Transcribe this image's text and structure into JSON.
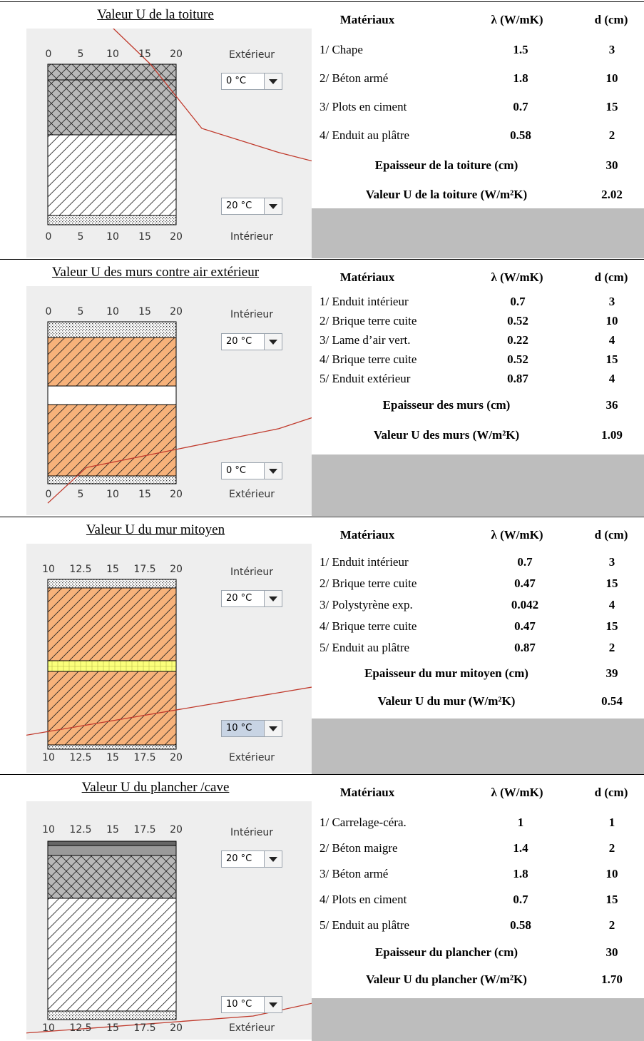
{
  "headers": {
    "materials": "Matériaux",
    "lambda": "λ (W/mK)",
    "d": "d (cm)"
  },
  "sections": [
    {
      "title": "Valeur U de la toiture",
      "top_label": "Extérieur",
      "bottom_label": "Intérieur",
      "top_temp": "0 °C",
      "bottom_temp": "20 °C",
      "ticks_top": [
        "0",
        "5",
        "10",
        "15",
        "20"
      ],
      "ticks_bottom": [
        "0",
        "5",
        "10",
        "15",
        "20"
      ],
      "temp_range": [
        0,
        20
      ],
      "temp_profile": [
        [
          3,
          -0.5
        ],
        [
          16,
          0
        ],
        [
          24,
          0.4
        ],
        [
          36,
          0.55
        ],
        [
          92,
          1.12
        ]
      ],
      "materials": [
        {
          "name": "1/ Chape",
          "lambda": "1.5",
          "d": "3"
        },
        {
          "name": "2/ Béton armé",
          "lambda": "1.8",
          "d": "10"
        },
        {
          "name": "3/ Plots en ciment",
          "lambda": "0.7",
          "d": "15"
        },
        {
          "name": "4/ Enduit au plâtre",
          "lambda": "0.58",
          "d": "2"
        }
      ],
      "thickness_label": "Epaisseur de la toiture (cm)",
      "thickness_value": "30",
      "u_label": "Valeur U de la toiture (W/m²K)",
      "u_value": "2.02"
    },
    {
      "title": "Valeur U des murs contre air extérieur",
      "top_label": "Intérieur",
      "bottom_label": "Extérieur",
      "top_temp": "20 °C",
      "bottom_temp": "0 °C",
      "ticks_top": [
        "0",
        "5",
        "10",
        "15",
        "20"
      ],
      "ticks_bottom": [
        "0",
        "5",
        "10",
        "15",
        "20"
      ],
      "temp_range": [
        0,
        20
      ],
      "temp_profile": [
        [
          97,
          -0.3
        ],
        [
          93,
          0
        ],
        [
          78,
          0.33
        ],
        [
          52,
          0.45
        ],
        [
          36,
          0.66
        ],
        [
          6,
          0.9
        ],
        [
          0,
          1.12
        ]
      ],
      "materials": [
        {
          "name": "1/ Enduit intérieur",
          "lambda": "0.7",
          "d": "3"
        },
        {
          "name": "2/ Brique terre cuite",
          "lambda": "0.52",
          "d": "10"
        },
        {
          "name": "3/ Lame d’air vert.",
          "lambda": "0.22",
          "d": "4"
        },
        {
          "name": "4/ Brique terre cuite",
          "lambda": "0.52",
          "d": "15"
        },
        {
          "name": "5/ Enduit extérieur",
          "lambda": "0.87",
          "d": "4"
        }
      ],
      "thickness_label": "Epaisseur des murs (cm)",
      "thickness_value": "36",
      "u_label": "Valeur U des murs (W/m²K)",
      "u_value": "1.09"
    },
    {
      "title": "Valeur U du mur mitoyen",
      "top_label": "Intérieur",
      "bottom_label": "Extérieur",
      "top_temp": "20 °C",
      "bottom_temp": "10 °C",
      "ticks_top": [
        "10",
        "12.5",
        "15",
        "17.5",
        "20"
      ],
      "ticks_bottom": [
        "10",
        "12.5",
        "15",
        "17.5",
        "20"
      ],
      "temp_range": [
        10,
        20
      ],
      "temp_profile": [
        [
          98,
          -0.3
        ],
        [
          95,
          0
        ],
        [
          80,
          0.5
        ],
        [
          52,
          0.52
        ],
        [
          38,
          0.54
        ],
        [
          5,
          0.96
        ],
        [
          0,
          1.12
        ]
      ],
      "materials": [
        {
          "name": "1/ Enduit intérieur",
          "lambda": "0.7",
          "d": "3"
        },
        {
          "name": "2/ Brique terre cuite",
          "lambda": "0.47",
          "d": "15"
        },
        {
          "name": "3/ Polystyrène exp.",
          "lambda": "0.042",
          "d": "4"
        },
        {
          "name": "4/ Brique terre cuite",
          "lambda": "0.47",
          "d": "15"
        },
        {
          "name": "5/ Enduit au plâtre",
          "lambda": "0.87",
          "d": "2"
        }
      ],
      "thickness_label": "Epaisseur du mur mitoyen (cm)",
      "thickness_value": "39",
      "u_label": "Valeur U du mur (W/m²K)",
      "u_value": "0.54"
    },
    {
      "title": "Valeur U du plancher /cave",
      "top_label": "Intérieur",
      "bottom_label": "Extérieur",
      "top_temp": "20 °C",
      "bottom_temp": "10 °C",
      "ticks_top": [
        "10",
        "12.5",
        "15",
        "17.5",
        "20"
      ],
      "ticks_bottom": [
        "10",
        "12.5",
        "15",
        "17.5",
        "20"
      ],
      "temp_range": [
        10,
        20
      ],
      "temp_profile": [
        [
          100,
          -0.25
        ],
        [
          74,
          0
        ],
        [
          72,
          0.07
        ],
        [
          68,
          0.24
        ],
        [
          60,
          0.45
        ],
        [
          26,
          0.98
        ],
        [
          0,
          1.12
        ]
      ],
      "materials": [
        {
          "name": "1/ Carrelage-céra.",
          "lambda": "1",
          "d": "1"
        },
        {
          "name": "2/ Béton maigre",
          "lambda": "1.4",
          "d": "2"
        },
        {
          "name": "3/ Béton armé",
          "lambda": "1.8",
          "d": "10"
        },
        {
          "name": "4/ Plots en ciment",
          "lambda": "0.7",
          "d": "15"
        },
        {
          "name": "5/ Enduit au plâtre",
          "lambda": "0.58",
          "d": "2"
        }
      ],
      "thickness_label": "Epaisseur du plancher (cm)",
      "thickness_value": "30",
      "u_label": "Valeur U du plancher (W/m²K)",
      "u_value": "1.70"
    }
  ]
}
